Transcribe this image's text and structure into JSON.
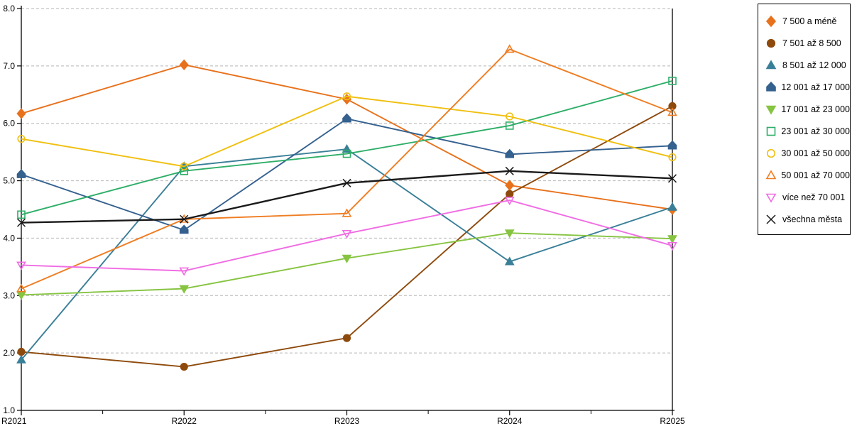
{
  "chart_data": {
    "type": "line",
    "title": "",
    "xlabel": "",
    "ylabel": "",
    "x_categories": [
      "R2021",
      "R2022",
      "R2023",
      "R2024",
      "R2025"
    ],
    "ylim": [
      1.0,
      8.0
    ],
    "y_tick_labels": [
      "8.0",
      "7.0",
      "6.0",
      "5.0",
      "4.0",
      "3.0",
      "2.0",
      "1.0"
    ],
    "y_tick_values": [
      8,
      7,
      6,
      5,
      4,
      3,
      2,
      1
    ],
    "grid": "horizontal dashed gray",
    "legend_position": "outside top-right, boxed",
    "axis_color": "#000000",
    "grid_color": "#b5b5b5",
    "series": [
      {
        "name": "7 500 a méně",
        "color": "#E8711C",
        "marker": "diamond",
        "marker_fill": "filled",
        "values": [
          6.17,
          7.02,
          6.42,
          4.92,
          4.5
        ]
      },
      {
        "name": "7 501 až 8 500",
        "color": "#8E4A0C",
        "marker": "circle",
        "marker_fill": "filled",
        "values": [
          2.02,
          1.76,
          2.26,
          4.77,
          6.3
        ]
      },
      {
        "name": "8 501 až 12 000",
        "color": "#3A7F98",
        "marker": "triangle-up",
        "marker_fill": "filled",
        "values": [
          1.88,
          5.25,
          5.55,
          3.59,
          4.54
        ]
      },
      {
        "name": "12 001 až 17 000",
        "color": "#35618F",
        "marker": "pentagon-up",
        "marker_fill": "filled",
        "values": [
          5.11,
          4.14,
          6.08,
          5.46,
          5.61
        ]
      },
      {
        "name": "17 001 až 23 000",
        "color": "#86C441",
        "marker": "triangle-down",
        "marker_fill": "filled",
        "values": [
          3.01,
          3.12,
          3.65,
          4.09,
          3.99
        ]
      },
      {
        "name": "23 001 až 30 000",
        "color": "#2EAE68",
        "marker": "square",
        "marker_fill": "open",
        "values": [
          4.41,
          5.17,
          5.47,
          5.96,
          6.74
        ]
      },
      {
        "name": "30 001 až 50 000",
        "color": "#F0C011",
        "marker": "circle",
        "marker_fill": "open",
        "values": [
          5.73,
          5.25,
          6.47,
          6.12,
          5.41
        ]
      },
      {
        "name": "50 001 až 70 000",
        "color": "#EF7D22",
        "marker": "triangle-up",
        "marker_fill": "open",
        "values": [
          3.12,
          4.33,
          4.43,
          7.29,
          6.19
        ]
      },
      {
        "name": "více než 70 001",
        "color": "#F06CE3",
        "marker": "triangle-down",
        "marker_fill": "open",
        "values": [
          3.53,
          3.43,
          4.08,
          4.66,
          3.87
        ]
      },
      {
        "name": "všechna města",
        "color": "#1A1A1A",
        "marker": "x",
        "marker_fill": "line",
        "values": [
          4.27,
          4.33,
          4.96,
          5.17,
          5.04
        ],
        "line_width": 2.4
      }
    ]
  }
}
